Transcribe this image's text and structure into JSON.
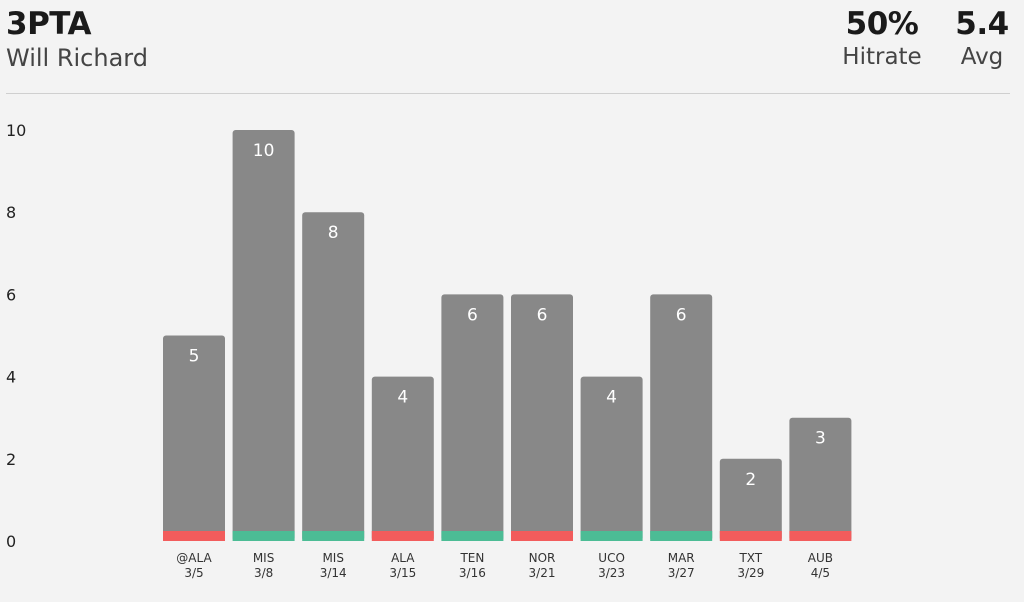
{
  "header": {
    "title": "3PTA",
    "player": "Will Richard",
    "hitrate_value": "50%",
    "hitrate_label": "Hitrate",
    "avg_value": "5.4",
    "avg_label": "Avg"
  },
  "colors": {
    "bar": "#888888",
    "hit": "#4cbc95",
    "miss": "#f25c5c",
    "background": "#f3f3f3"
  },
  "chart_data": {
    "type": "bar",
    "categories": [
      "@ALA",
      "MIS",
      "MIS",
      "ALA",
      "TEN",
      "NOR",
      "UCO",
      "MAR",
      "TXT",
      "AUB"
    ],
    "dates": [
      "3/5",
      "3/8",
      "3/14",
      "3/15",
      "3/16",
      "3/21",
      "3/23",
      "3/27",
      "3/29",
      "4/5"
    ],
    "values": [
      5,
      10,
      8,
      4,
      6,
      6,
      4,
      6,
      2,
      3
    ],
    "result": [
      "miss",
      "hit",
      "hit",
      "miss",
      "hit",
      "miss",
      "hit",
      "hit",
      "miss",
      "miss"
    ],
    "ylim": [
      0,
      10
    ],
    "yticks": [
      0,
      2,
      4,
      6,
      8,
      10
    ],
    "grid": false,
    "title": "",
    "xlabel": "",
    "ylabel": ""
  }
}
